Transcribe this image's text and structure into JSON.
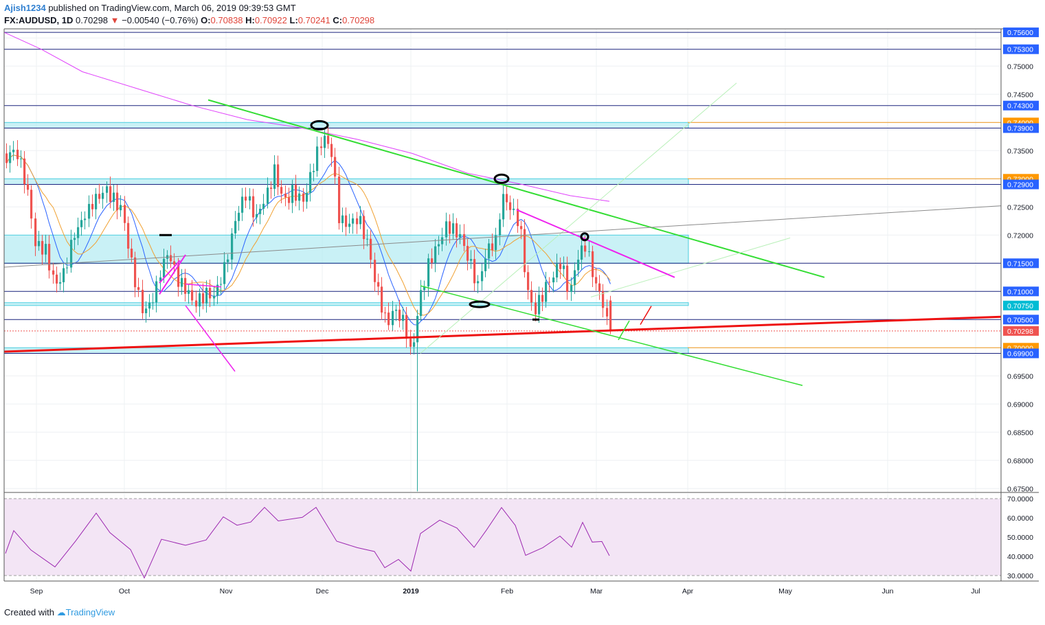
{
  "header": {
    "user": "Ajish1234",
    "published": " published on TradingView.com, March 06, 2019 09:39:53 GMT",
    "symbol": "FX:AUDUSD, 1D",
    "last": "0.70298",
    "change": "−0.00540 (−0.76%)",
    "o_label": "O:",
    "o": "0.70838",
    "h_label": "H:",
    "h": "0.70922",
    "l_label": "L:",
    "l": "0.70241",
    "c_label": "C:",
    "c": "0.70298"
  },
  "footer": {
    "created": "Created with",
    "brand": "TradingView"
  },
  "colors": {
    "up": "#26a69a",
    "down": "#ef5350",
    "zone": "#b2ebf2",
    "zone_border": "#4dd0e1",
    "resistance_line": "#1a237e",
    "trend_green": "#33dd33",
    "trend_red": "#ee1111",
    "ma200": "#e040fb",
    "ma_blue": "#2962ff",
    "ma_orange": "#f0a030",
    "rsi": "#9c27b0",
    "rsi_bg": "#f3e5f5",
    "tag_blue": "#2962ff",
    "tag_orange": "#ff9800",
    "tag_red": "#ef5350",
    "tag_cyan": "#00bcd4"
  },
  "chart_data": [
    {
      "type": "candlestick",
      "symbol": "FX:AUDUSD",
      "timeframe": "1D",
      "xlabel": "",
      "ylabel": "",
      "x_ticks": [
        "Sep",
        "Oct",
        "Nov",
        "Dec",
        "2019",
        "Feb",
        "Mar",
        "Apr",
        "May",
        "Jun",
        "Jul"
      ],
      "ylim": [
        0.6735,
        0.7585
      ],
      "y_ticks": [
        "0.75300",
        "0.75000",
        "0.74500",
        "0.74300",
        "0.73900",
        "0.73500",
        "0.72900",
        "0.72500",
        "0.72000",
        "0.71500",
        "0.71000",
        "0.70500",
        "0.70000",
        "0.69900",
        "0.69500",
        "0.69000",
        "0.68500",
        "0.68000",
        "0.67500"
      ],
      "price_tags": [
        {
          "value": "0.75600",
          "color": "blue"
        },
        {
          "value": "0.75300",
          "color": "blue"
        },
        {
          "value": "0.74300",
          "color": "blue"
        },
        {
          "value": "0.74000",
          "color": "orange"
        },
        {
          "value": "0.73900",
          "color": "blue"
        },
        {
          "value": "0.73000",
          "color": "orange"
        },
        {
          "value": "0.72900",
          "color": "blue"
        },
        {
          "value": "0.71500",
          "color": "blue"
        },
        {
          "value": "0.71000",
          "color": "blue"
        },
        {
          "value": "0.70750",
          "color": "cyan"
        },
        {
          "value": "0.70500",
          "color": "blue"
        },
        {
          "value": "0.70298",
          "color": "red"
        },
        {
          "value": "0.70000",
          "color": "orange"
        },
        {
          "value": "0.69900",
          "color": "blue"
        }
      ],
      "horizontal_levels": [
        0.756,
        0.753,
        0.743,
        0.739,
        0.729,
        0.715,
        0.71,
        0.705,
        0.699
      ],
      "zones": [
        [
          0.739,
          0.74
        ],
        [
          0.729,
          0.73
        ],
        [
          0.715,
          0.72
        ],
        [
          0.7075,
          0.708
        ],
        [
          0.699,
          0.7
        ]
      ],
      "last_close": 0.70298,
      "indicators": [
        "SMA 200 (magenta)",
        "EMA (blue)",
        "SMA (orange)"
      ]
    },
    {
      "type": "line",
      "indicator": "RSI",
      "ylim": [
        27.5,
        72.5
      ],
      "y_ticks": [
        "70.0000",
        "60.0000",
        "50.0000",
        "40.0000",
        "30.0000"
      ],
      "bands": [
        30,
        70
      ]
    }
  ]
}
